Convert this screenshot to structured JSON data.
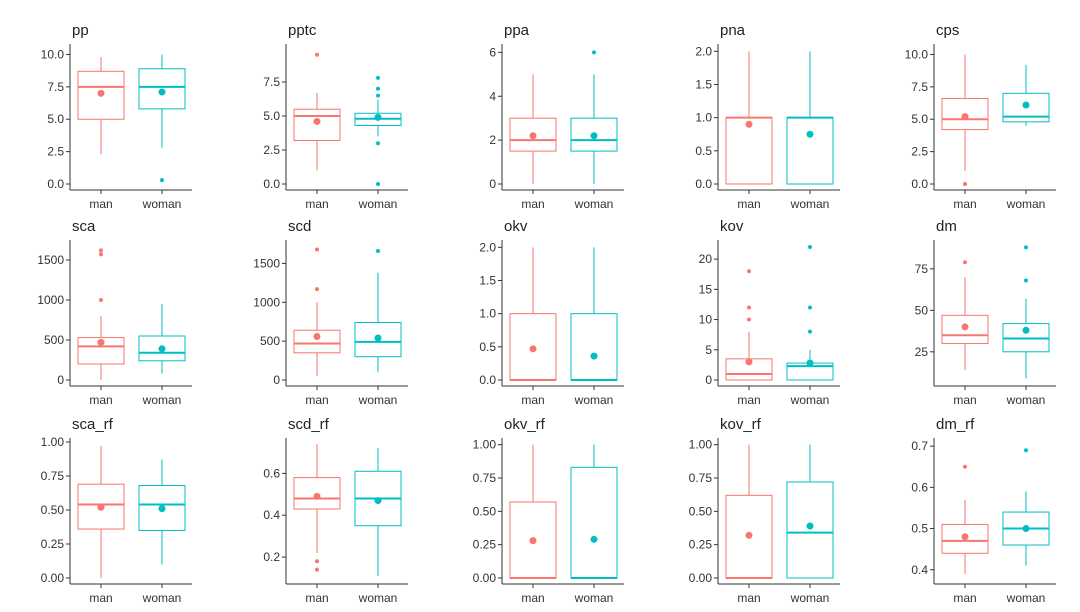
{
  "colors": {
    "man": "#F8766D",
    "woman": "#00BFC4",
    "axis": "#333333"
  },
  "chart_data": [
    {
      "type": "box",
      "title": "pp",
      "categories": [
        "man",
        "woman"
      ],
      "ylim": [
        0,
        10.5
      ],
      "yticks": [
        0.0,
        2.5,
        5.0,
        7.5,
        10.0
      ],
      "ytick_labels": [
        "0.0",
        "2.5",
        "5.0",
        "7.5",
        "10.0"
      ],
      "series": [
        {
          "name": "man",
          "q1": 5.0,
          "median": 7.5,
          "q3": 8.7,
          "whisker_low": 2.3,
          "whisker_high": 9.8,
          "mean": 7.0,
          "outliers": []
        },
        {
          "name": "woman",
          "q1": 5.8,
          "median": 7.5,
          "q3": 8.9,
          "whisker_low": 2.8,
          "whisker_high": 10.0,
          "mean": 7.1,
          "outliers": [
            0.3
          ]
        }
      ]
    },
    {
      "type": "box",
      "title": "pptc",
      "categories": [
        "man",
        "woman"
      ],
      "ylim": [
        0,
        10
      ],
      "yticks": [
        0.0,
        2.5,
        5.0,
        7.5
      ],
      "ytick_labels": [
        "0.0",
        "2.5",
        "5.0",
        "7.5"
      ],
      "series": [
        {
          "name": "man",
          "q1": 3.2,
          "median": 5.0,
          "q3": 5.5,
          "whisker_low": 1.0,
          "whisker_high": 6.7,
          "mean": 4.6,
          "outliers": [
            9.5
          ]
        },
        {
          "name": "woman",
          "q1": 4.3,
          "median": 4.8,
          "q3": 5.2,
          "whisker_low": 3.5,
          "whisker_high": 6.2,
          "mean": 4.9,
          "outliers": [
            0.0,
            3.0,
            6.5,
            7.0,
            7.8
          ]
        }
      ]
    },
    {
      "type": "box",
      "title": "ppa",
      "categories": [
        "man",
        "woman"
      ],
      "ylim": [
        0,
        6.2
      ],
      "yticks": [
        0,
        2,
        4,
        6
      ],
      "ytick_labels": [
        "0",
        "2",
        "4",
        "6"
      ],
      "series": [
        {
          "name": "man",
          "q1": 1.5,
          "median": 2.0,
          "q3": 3.0,
          "whisker_low": 0.0,
          "whisker_high": 5.0,
          "mean": 2.2,
          "outliers": []
        },
        {
          "name": "woman",
          "q1": 1.5,
          "median": 2.0,
          "q3": 3.0,
          "whisker_low": 0.0,
          "whisker_high": 5.0,
          "mean": 2.2,
          "outliers": [
            6.0
          ]
        }
      ]
    },
    {
      "type": "box",
      "title": "pna",
      "categories": [
        "man",
        "woman"
      ],
      "ylim": [
        0,
        2.05
      ],
      "yticks": [
        0.0,
        0.5,
        1.0,
        1.5,
        2.0
      ],
      "ytick_labels": [
        "0.0",
        "0.5",
        "1.0",
        "1.5",
        "2.0"
      ],
      "series": [
        {
          "name": "man",
          "q1": 0.0,
          "median": 1.0,
          "q3": 1.0,
          "whisker_low": 0.0,
          "whisker_high": 2.0,
          "mean": 0.9,
          "outliers": []
        },
        {
          "name": "woman",
          "q1": 0.0,
          "median": 1.0,
          "q3": 1.0,
          "whisker_low": 0.0,
          "whisker_high": 2.0,
          "mean": 0.75,
          "outliers": []
        }
      ]
    },
    {
      "type": "box",
      "title": "cps",
      "categories": [
        "man",
        "woman"
      ],
      "ylim": [
        0,
        10.5
      ],
      "yticks": [
        0.0,
        2.5,
        5.0,
        7.5,
        10.0
      ],
      "ytick_labels": [
        "0.0",
        "2.5",
        "5.0",
        "7.5",
        "10.0"
      ],
      "series": [
        {
          "name": "man",
          "q1": 4.2,
          "median": 5.0,
          "q3": 6.6,
          "whisker_low": 1.0,
          "whisker_high": 10.0,
          "mean": 5.2,
          "outliers": [
            0.0
          ]
        },
        {
          "name": "woman",
          "q1": 4.8,
          "median": 5.2,
          "q3": 7.0,
          "whisker_low": 4.5,
          "whisker_high": 9.2,
          "mean": 6.1,
          "outliers": []
        }
      ]
    },
    {
      "type": "box",
      "title": "sca",
      "categories": [
        "man",
        "woman"
      ],
      "ylim": [
        0,
        1700
      ],
      "yticks": [
        0,
        500,
        1000,
        1500
      ],
      "ytick_labels": [
        "0",
        "500",
        "1000",
        "1500"
      ],
      "series": [
        {
          "name": "man",
          "q1": 200,
          "median": 420,
          "q3": 530,
          "whisker_low": 0,
          "whisker_high": 800,
          "mean": 470,
          "outliers": [
            1000,
            1570,
            1620
          ]
        },
        {
          "name": "woman",
          "q1": 240,
          "median": 340,
          "q3": 550,
          "whisker_low": 80,
          "whisker_high": 950,
          "mean": 390,
          "outliers": []
        }
      ]
    },
    {
      "type": "box",
      "title": "scd",
      "categories": [
        "man",
        "woman"
      ],
      "ylim": [
        0,
        1750
      ],
      "yticks": [
        0,
        500,
        1000,
        1500
      ],
      "ytick_labels": [
        "0",
        "500",
        "1000",
        "1500"
      ],
      "series": [
        {
          "name": "man",
          "q1": 350,
          "median": 470,
          "q3": 640,
          "whisker_low": 50,
          "whisker_high": 1000,
          "mean": 560,
          "outliers": [
            1170,
            1680
          ]
        },
        {
          "name": "woman",
          "q1": 300,
          "median": 490,
          "q3": 740,
          "whisker_low": 100,
          "whisker_high": 1380,
          "mean": 540,
          "outliers": [
            1660
          ]
        }
      ]
    },
    {
      "type": "box",
      "title": "okv",
      "categories": [
        "man",
        "woman"
      ],
      "ylim": [
        0,
        2.05
      ],
      "yticks": [
        0.0,
        0.5,
        1.0,
        1.5,
        2.0
      ],
      "ytick_labels": [
        "0.0",
        "0.5",
        "1.0",
        "1.5",
        "2.0"
      ],
      "series": [
        {
          "name": "man",
          "q1": 0.0,
          "median": 0.0,
          "q3": 1.0,
          "whisker_low": 0.0,
          "whisker_high": 2.0,
          "mean": 0.47,
          "outliers": []
        },
        {
          "name": "woman",
          "q1": 0.0,
          "median": 0.0,
          "q3": 1.0,
          "whisker_low": 0.0,
          "whisker_high": 2.0,
          "mean": 0.36,
          "outliers": []
        }
      ]
    },
    {
      "type": "box",
      "title": "kov",
      "categories": [
        "man",
        "woman"
      ],
      "ylim": [
        0,
        22.5
      ],
      "yticks": [
        0,
        5,
        10,
        15,
        20
      ],
      "ytick_labels": [
        "0",
        "5",
        "10",
        "15",
        "20"
      ],
      "series": [
        {
          "name": "man",
          "q1": 0.0,
          "median": 1.0,
          "q3": 3.5,
          "whisker_low": 0.0,
          "whisker_high": 8.0,
          "mean": 3.0,
          "outliers": [
            10,
            12,
            18
          ]
        },
        {
          "name": "woman",
          "q1": 0.0,
          "median": 2.3,
          "q3": 2.8,
          "whisker_low": 0.0,
          "whisker_high": 5.0,
          "mean": 2.8,
          "outliers": [
            8,
            12,
            22
          ]
        }
      ]
    },
    {
      "type": "box",
      "title": "dm",
      "categories": [
        "man",
        "woman"
      ],
      "ylim": [
        8,
        90
      ],
      "yticks": [
        25,
        50,
        75
      ],
      "ytick_labels": [
        "25",
        "50",
        "75"
      ],
      "series": [
        {
          "name": "man",
          "q1": 30,
          "median": 35,
          "q3": 47,
          "whisker_low": 14,
          "whisker_high": 70,
          "mean": 40,
          "outliers": [
            79
          ]
        },
        {
          "name": "woman",
          "q1": 25,
          "median": 33,
          "q3": 42,
          "whisker_low": 9,
          "whisker_high": 57,
          "mean": 38,
          "outliers": [
            68,
            88
          ]
        }
      ]
    },
    {
      "type": "box",
      "title": "sca_rf",
      "categories": [
        "man",
        "woman"
      ],
      "ylim": [
        0,
        1.0
      ],
      "yticks": [
        0.0,
        0.25,
        0.5,
        0.75,
        1.0
      ],
      "ytick_labels": [
        "0.00",
        "0.25",
        "0.50",
        "0.75",
        "1.00"
      ],
      "series": [
        {
          "name": "man",
          "q1": 0.36,
          "median": 0.54,
          "q3": 0.69,
          "whisker_low": 0.0,
          "whisker_high": 0.97,
          "mean": 0.52,
          "outliers": []
        },
        {
          "name": "woman",
          "q1": 0.35,
          "median": 0.54,
          "q3": 0.68,
          "whisker_low": 0.1,
          "whisker_high": 0.87,
          "mean": 0.51,
          "outliers": []
        }
      ]
    },
    {
      "type": "box",
      "title": "scd_rf",
      "categories": [
        "man",
        "woman"
      ],
      "ylim": [
        0.1,
        0.75
      ],
      "yticks": [
        0.2,
        0.4,
        0.6
      ],
      "ytick_labels": [
        "0.2",
        "0.4",
        "0.6"
      ],
      "series": [
        {
          "name": "man",
          "q1": 0.43,
          "median": 0.48,
          "q3": 0.58,
          "whisker_low": 0.22,
          "whisker_high": 0.74,
          "mean": 0.49,
          "outliers": [
            0.14,
            0.18
          ]
        },
        {
          "name": "woman",
          "q1": 0.35,
          "median": 0.48,
          "q3": 0.61,
          "whisker_low": 0.11,
          "whisker_high": 0.72,
          "mean": 0.47,
          "outliers": []
        }
      ]
    },
    {
      "type": "box",
      "title": "okv_rf",
      "categories": [
        "man",
        "woman"
      ],
      "ylim": [
        0,
        1.02
      ],
      "yticks": [
        0.0,
        0.25,
        0.5,
        0.75,
        1.0
      ],
      "ytick_labels": [
        "0.00",
        "0.25",
        "0.50",
        "0.75",
        "1.00"
      ],
      "series": [
        {
          "name": "man",
          "q1": 0.0,
          "median": 0.0,
          "q3": 0.57,
          "whisker_low": 0.0,
          "whisker_high": 1.0,
          "mean": 0.28,
          "outliers": []
        },
        {
          "name": "woman",
          "q1": 0.0,
          "median": 0.0,
          "q3": 0.83,
          "whisker_low": 0.0,
          "whisker_high": 1.0,
          "mean": 0.29,
          "outliers": []
        }
      ]
    },
    {
      "type": "box",
      "title": "kov_rf",
      "categories": [
        "man",
        "woman"
      ],
      "ylim": [
        0,
        1.02
      ],
      "yticks": [
        0.0,
        0.25,
        0.5,
        0.75,
        1.0
      ],
      "ytick_labels": [
        "0.00",
        "0.25",
        "0.50",
        "0.75",
        "1.00"
      ],
      "series": [
        {
          "name": "man",
          "q1": 0.0,
          "median": 0.0,
          "q3": 0.62,
          "whisker_low": 0.0,
          "whisker_high": 1.0,
          "mean": 0.32,
          "outliers": []
        },
        {
          "name": "woman",
          "q1": 0.0,
          "median": 0.34,
          "q3": 0.72,
          "whisker_low": 0.0,
          "whisker_high": 1.0,
          "mean": 0.39,
          "outliers": []
        }
      ]
    },
    {
      "type": "box",
      "title": "dm_rf",
      "categories": [
        "man",
        "woman"
      ],
      "ylim": [
        0.38,
        0.71
      ],
      "yticks": [
        0.4,
        0.5,
        0.6,
        0.7
      ],
      "ytick_labels": [
        "0.4",
        "0.5",
        "0.6",
        "0.7"
      ],
      "series": [
        {
          "name": "man",
          "q1": 0.44,
          "median": 0.47,
          "q3": 0.51,
          "whisker_low": 0.39,
          "whisker_high": 0.57,
          "mean": 0.48,
          "outliers": [
            0.65
          ]
        },
        {
          "name": "woman",
          "q1": 0.46,
          "median": 0.5,
          "q3": 0.54,
          "whisker_low": 0.41,
          "whisker_high": 0.59,
          "mean": 0.5,
          "outliers": [
            0.69
          ]
        }
      ]
    }
  ]
}
